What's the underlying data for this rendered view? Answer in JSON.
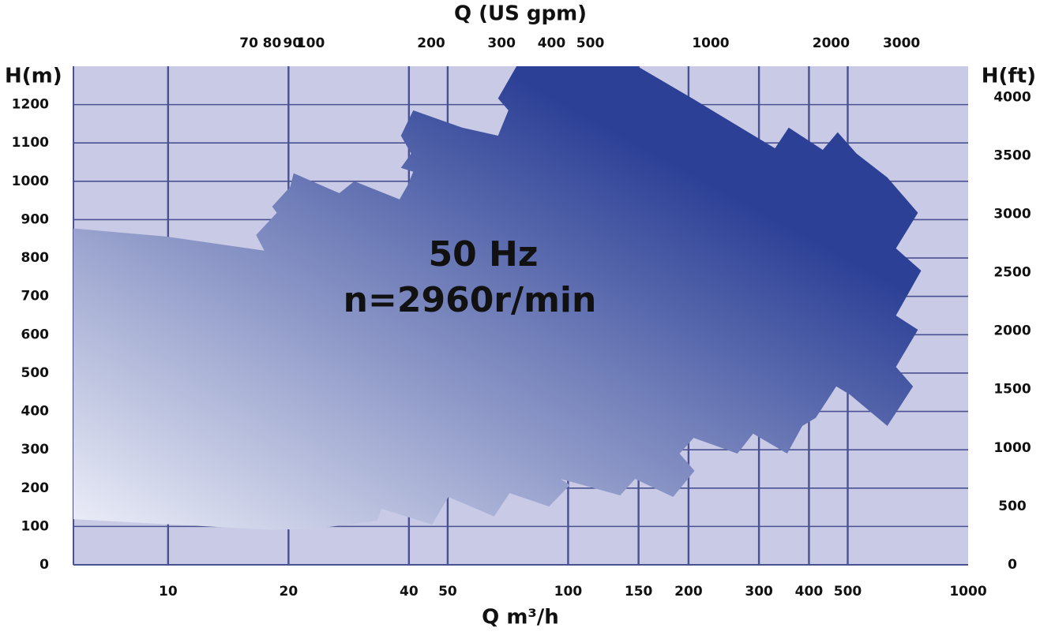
{
  "chart_data": {
    "type": "area",
    "title": "Q (US gpm)",
    "x_label": "Q m³/h",
    "y_label": "H(m)",
    "y2_label": "H(ft)",
    "annotations": [
      "50 Hz",
      "n=2960r/min"
    ],
    "x_scale": "log",
    "xlim": [
      5.8,
      1000
    ],
    "xticks": [
      10,
      20,
      40,
      50,
      100,
      150,
      200,
      300,
      400,
      500,
      1000
    ],
    "x2lim": [
      25.5,
      4403
    ],
    "x2ticks": [
      70,
      80,
      90,
      100,
      200,
      300,
      400,
      500,
      1000,
      2000,
      3000
    ],
    "ylim": [
      0,
      1300
    ],
    "yticks": [
      0,
      100,
      200,
      300,
      400,
      500,
      600,
      700,
      800,
      900,
      1000,
      1100,
      1200
    ],
    "y2lim": [
      0,
      4265
    ],
    "y2ticks": [
      0,
      500,
      1000,
      1500,
      2000,
      2500,
      3000,
      3500,
      4000
    ],
    "grid": true,
    "background": "#c9cbe6",
    "grid_color": "#4a5190",
    "color_light": "#eceef8",
    "color_dark": "#2c4096",
    "x": [
      5.8,
      9.9,
      17.4,
      16.6,
      18.7,
      18.2,
      20.2,
      20.6,
      26.8,
      29.2,
      37.9,
      39.7,
      41.0,
      38.2,
      40.5,
      38.2,
      41.0,
      54.3,
      66.8,
      70.9,
      66.8,
      74.3,
      149,
      206,
      329,
      356,
      433,
      472,
      526,
      628,
      749,
      660,
      763,
      660,
      749,
      660,
      728,
      628,
      506,
      468,
      416,
      385,
      353,
      290,
      265,
      206,
      190,
      207,
      183,
      147,
      135,
      95.8,
      101,
      89.6,
      71.4,
      65.3,
      50.2,
      45.7,
      34.2,
      33.3,
      23.8,
      18.2,
      5.8
    ],
    "values": [
      877,
      856,
      819,
      860,
      918,
      934,
      986,
      1021,
      969,
      1000,
      953,
      990,
      1025,
      1035,
      1072,
      1119,
      1185,
      1140,
      1119,
      1185,
      1216,
      1300,
      1300,
      1214,
      1086,
      1140,
      1082,
      1128,
      1072,
      1010,
      918,
      825,
      767,
      650,
      613,
      516,
      465,
      362,
      444,
      465,
      383,
      362,
      290,
      342,
      290,
      331,
      290,
      245,
      177,
      224,
      181,
      224,
      208,
      152,
      187,
      126,
      177,
      105,
      146,
      115,
      95,
      91,
      119
    ]
  }
}
